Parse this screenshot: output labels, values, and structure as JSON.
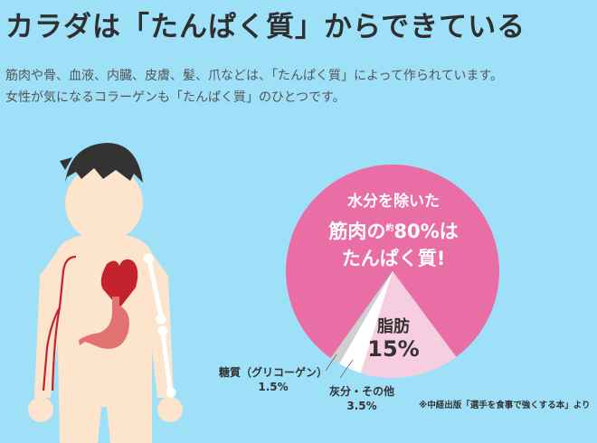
{
  "header": {
    "title": "カラダは「たんぱく質」からできている"
  },
  "intro": {
    "line1": "筋肉や骨、血液、内臓、皮膚、髪、爪などは、「たんぱく質」によって作られています。",
    "line2": "女性が気になるコラーゲンも「たんぱく質」のひとつです。"
  },
  "colors": {
    "background": "#9fe0f9",
    "protein": "#e96ea6",
    "fat": "#f7cde0",
    "ash": "#ffffff",
    "sugar": "#cfcfcf",
    "skin": "#fde4cc",
    "hair": "#333333",
    "heart": "#c4232d",
    "stomach": "#e27371"
  },
  "illustration": {
    "icons": [
      "human-body-icon",
      "heart-icon",
      "stomach-icon",
      "bone-icon",
      "blood-vessel-icon"
    ]
  },
  "chart_data": {
    "type": "pie",
    "slices": [
      {
        "name": "たんぱく質",
        "value": 80,
        "color": "#e96ea6"
      },
      {
        "name": "脂肪",
        "value": 15,
        "color": "#f7cde0"
      },
      {
        "name": "灰分・その他",
        "value": 3.5,
        "color": "#ffffff"
      },
      {
        "name": "糖質（グリコーゲン）",
        "value": 1.5,
        "color": "#cfcfcf"
      }
    ],
    "center_text": {
      "line1": "水分を除いた",
      "line2a": "筋肉の",
      "line2b": "約",
      "line2c": "80%は",
      "line3": "たんぱく質!"
    },
    "labels": {
      "fat_name": "脂肪",
      "fat_value": "15%",
      "sugar_name": "糖質（グリコーゲン）",
      "sugar_value": "1.5%",
      "ash_name": "灰分・その他",
      "ash_value": "3.5%"
    },
    "source": "※中経出版「選手を食事で強くする本」より"
  }
}
